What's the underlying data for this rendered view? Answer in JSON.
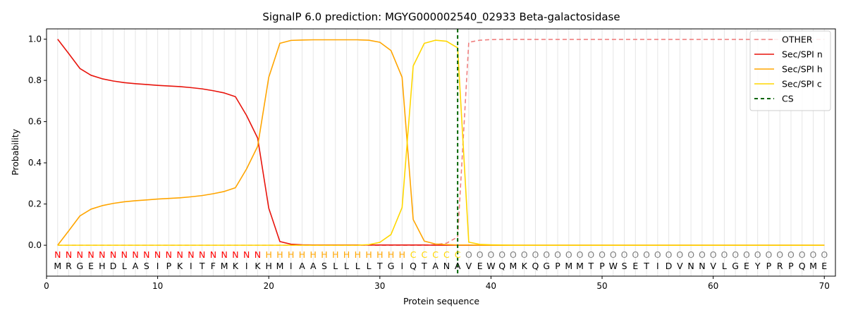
{
  "chart_data": {
    "type": "line",
    "title": "SignalP 6.0 prediction: MGYG000002540_02933 Beta-galactosidase",
    "xlabel": "Protein sequence",
    "ylabel": "Probability",
    "xlim": [
      0,
      71
    ],
    "ylim": [
      -0.15,
      1.05
    ],
    "xticks": [
      0,
      10,
      20,
      30,
      40,
      50,
      60,
      70
    ],
    "yticks": [
      0.0,
      0.2,
      0.4,
      0.6,
      0.8,
      1.0
    ],
    "xtick_labels": [
      "0",
      "10",
      "20",
      "30",
      "40",
      "50",
      "60",
      "70"
    ],
    "ytick_labels": [
      "0.0",
      "0.2",
      "0.4",
      "0.6",
      "0.8",
      "1.0"
    ],
    "grid": "vertical lines at each residue",
    "legend_position": "top-right",
    "x": [
      1,
      2,
      3,
      4,
      5,
      6,
      7,
      8,
      9,
      10,
      11,
      12,
      13,
      14,
      15,
      16,
      17,
      18,
      19,
      20,
      21,
      22,
      23,
      24,
      25,
      26,
      27,
      28,
      29,
      30,
      31,
      32,
      33,
      34,
      35,
      36,
      37,
      38,
      39,
      40,
      41,
      42,
      43,
      44,
      45,
      46,
      47,
      48,
      49,
      50,
      51,
      52,
      53,
      54,
      55,
      56,
      57,
      58,
      59,
      60,
      61,
      62,
      63,
      64,
      65,
      66,
      67,
      68,
      69,
      70
    ],
    "series": [
      {
        "name": "OTHER",
        "color": "#f08080",
        "dash": "6,4",
        "values": [
          0,
          0,
          0,
          0,
          0,
          0,
          0,
          0,
          0,
          0,
          0,
          0,
          0,
          0,
          0,
          0,
          0,
          0,
          0,
          0,
          0,
          0,
          0,
          0,
          0,
          0,
          0,
          0,
          0,
          0,
          0,
          0,
          0,
          0,
          0.003,
          0.01,
          0.04,
          0.985,
          0.995,
          0.998,
          0.999,
          0.999,
          0.999,
          0.999,
          0.999,
          0.999,
          0.999,
          0.999,
          0.999,
          0.999,
          0.999,
          0.999,
          0.999,
          0.999,
          0.999,
          0.999,
          0.999,
          0.999,
          0.999,
          0.999,
          0.999,
          0.999,
          0.999,
          0.999,
          0.999,
          0.999,
          0.999,
          0.999,
          0.999,
          0.999
        ]
      },
      {
        "name": "Sec/SPI n",
        "color": "#e8140c",
        "dash": "",
        "values": [
          1.0,
          0.93,
          0.858,
          0.825,
          0.808,
          0.797,
          0.789,
          0.784,
          0.78,
          0.776,
          0.773,
          0.77,
          0.765,
          0.759,
          0.75,
          0.739,
          0.721,
          0.63,
          0.52,
          0.18,
          0.018,
          0.005,
          0.002,
          0.001,
          0.001,
          0.001,
          0.001,
          0.001,
          0.001,
          0.001,
          0.001,
          0.001,
          0.001,
          0.001,
          0,
          0,
          0,
          0,
          0,
          0,
          0,
          0,
          0,
          0,
          0,
          0,
          0,
          0,
          0,
          0,
          0,
          0,
          0,
          0,
          0,
          0,
          0,
          0,
          0,
          0,
          0,
          0,
          0,
          0,
          0,
          0,
          0,
          0,
          0,
          0
        ]
      },
      {
        "name": "Sec/SPI h",
        "color": "#ffa500",
        "dash": "",
        "values": [
          0,
          0.07,
          0.142,
          0.175,
          0.192,
          0.203,
          0.211,
          0.216,
          0.22,
          0.224,
          0.227,
          0.23,
          0.235,
          0.241,
          0.25,
          0.261,
          0.279,
          0.37,
          0.48,
          0.815,
          0.98,
          0.994,
          0.996,
          0.997,
          0.997,
          0.997,
          0.997,
          0.997,
          0.995,
          0.985,
          0.945,
          0.815,
          0.125,
          0.02,
          0.006,
          0.003,
          0.001,
          0.001,
          0,
          0,
          0,
          0,
          0,
          0,
          0,
          0,
          0,
          0,
          0,
          0,
          0,
          0,
          0,
          0,
          0,
          0,
          0,
          0,
          0,
          0,
          0,
          0,
          0,
          0,
          0,
          0,
          0,
          0,
          0,
          0
        ]
      },
      {
        "name": "Sec/SPI c",
        "color": "#ffd700",
        "dash": "",
        "values": [
          0,
          0,
          0,
          0,
          0,
          0,
          0,
          0,
          0,
          0,
          0,
          0,
          0,
          0,
          0,
          0,
          0,
          0,
          0,
          0,
          0,
          0,
          0,
          0,
          0,
          0,
          0,
          0,
          0.003,
          0.014,
          0.052,
          0.183,
          0.87,
          0.98,
          0.995,
          0.99,
          0.958,
          0.015,
          0.004,
          0.002,
          0.001,
          0,
          0,
          0,
          0,
          0,
          0,
          0,
          0,
          0,
          0,
          0,
          0,
          0,
          0,
          0,
          0,
          0,
          0,
          0,
          0,
          0,
          0,
          0,
          0,
          0,
          0,
          0,
          0,
          0
        ]
      },
      {
        "name": "CS",
        "color": "#006400",
        "dash": "5,4",
        "type": "vline",
        "x": 37
      }
    ],
    "sequence": [
      "M",
      "R",
      "G",
      "E",
      "H",
      "D",
      "L",
      "A",
      "S",
      "I",
      "P",
      "K",
      "I",
      "T",
      "F",
      "M",
      "K",
      "I",
      "K",
      "H",
      "M",
      "I",
      "A",
      "A",
      "S",
      "L",
      "L",
      "L",
      "L",
      "T",
      "G",
      "I",
      "Q",
      "T",
      "A",
      "N",
      "A",
      "V",
      "E",
      "W",
      "Q",
      "M",
      "K",
      "Q",
      "G",
      "P",
      "M",
      "M",
      "T",
      "P",
      "W",
      "S",
      "E",
      "T",
      "I",
      "D",
      "V",
      "N",
      "N",
      "V",
      "L",
      "G",
      "E",
      "Y",
      "P",
      "R",
      "P",
      "Q",
      "M",
      "E"
    ],
    "region_labels": [
      "N",
      "N",
      "N",
      "N",
      "N",
      "N",
      "N",
      "N",
      "N",
      "N",
      "N",
      "N",
      "N",
      "N",
      "N",
      "N",
      "N",
      "N",
      "N",
      "H",
      "H",
      "H",
      "H",
      "H",
      "H",
      "H",
      "H",
      "H",
      "H",
      "H",
      "H",
      "H",
      "C",
      "C",
      "C",
      "C",
      "C",
      "O",
      "O",
      "O",
      "O",
      "O",
      "O",
      "O",
      "O",
      "O",
      "O",
      "O",
      "O",
      "O",
      "O",
      "O",
      "O",
      "O",
      "O",
      "O",
      "O",
      "O",
      "O",
      "O",
      "O",
      "O",
      "O",
      "O",
      "O",
      "O",
      "O",
      "O",
      "O",
      "O"
    ],
    "region_colors": {
      "N": "#ff0000",
      "H": "#ffa500",
      "C": "#ffd700",
      "O": "#808080"
    }
  }
}
